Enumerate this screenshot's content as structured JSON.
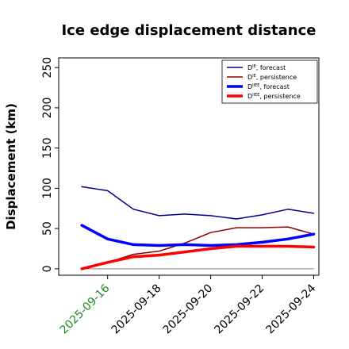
{
  "chart_data": {
    "type": "line",
    "title": "Ice edge displacement distance",
    "xlabel": "",
    "ylabel": "Displacement (km)",
    "x": [
      "2025-09-15",
      "2025-09-16",
      "2025-09-17",
      "2025-09-18",
      "2025-09-19",
      "2025-09-20",
      "2025-09-21",
      "2025-09-22",
      "2025-09-23",
      "2025-09-24"
    ],
    "x_tick_labels": [
      "2025-09-16",
      "2025-09-18",
      "2025-09-20",
      "2025-09-22",
      "2025-09-24"
    ],
    "highlight_tick": "2025-09-16",
    "highlight_color": "#228B22",
    "ylim": [
      -8,
      262
    ],
    "y_ticks": [
      0,
      50,
      100,
      150,
      200,
      250
    ],
    "xlim": [
      "2025-09-14.1",
      "2025-09-24.2"
    ],
    "grid": false,
    "legend_position": "top-right",
    "baseline_value": 0,
    "series": [
      {
        "name": "D^IE_forecast",
        "legend_main": "D",
        "legend_sup": "IE",
        "legend_sub": ", forecast",
        "color": "#00008B",
        "width": 1.5,
        "values": [
          102,
          97,
          74,
          66,
          68,
          66,
          62,
          67,
          74,
          69
        ]
      },
      {
        "name": "D^IE_persistence",
        "legend_main": "D",
        "legend_sup": "IE",
        "legend_sub": ", persistence",
        "color": "#8B0000",
        "width": 1.5,
        "values": [
          0,
          8,
          18,
          22,
          32,
          45,
          51,
          51,
          52,
          43
        ]
      },
      {
        "name": "D^IIEE_forecast",
        "legend_main": "D",
        "legend_sup": "IIEE",
        "legend_sub": ", forecast",
        "color": "#0000FF",
        "width": 3.5,
        "values": [
          54,
          37,
          30,
          29,
          30,
          29,
          30,
          33,
          37,
          43
        ]
      },
      {
        "name": "D^IIEE_persistence",
        "legend_main": "D",
        "legend_sup": "IIEE",
        "legend_sub": ", persistence",
        "color": "#FF0000",
        "width": 3.5,
        "values": [
          0,
          8,
          15,
          17,
          21,
          25,
          28,
          28,
          28,
          27
        ]
      }
    ]
  }
}
